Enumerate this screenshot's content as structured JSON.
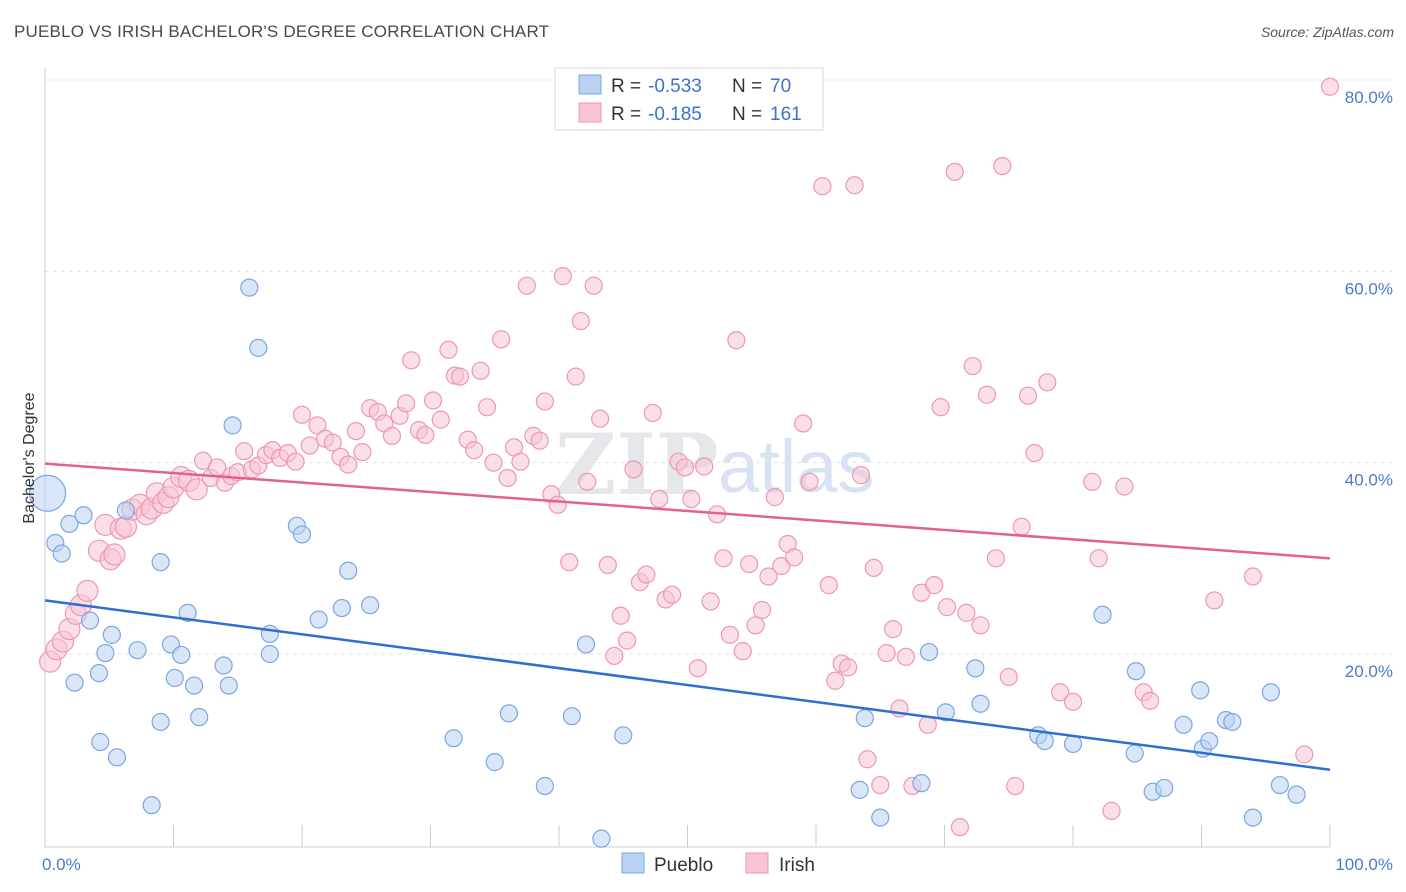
{
  "title": "PUEBLO VS IRISH BACHELOR'S DEGREE CORRELATION CHART",
  "source": "Source: ZipAtlas.com",
  "watermark": {
    "zip": "ZIP",
    "atlas": "atlas"
  },
  "colors": {
    "pueblo_fill": "#b9d2f3",
    "pueblo_stroke": "#7aa7e0",
    "pueblo_line": "#2f6fcf",
    "irish_fill": "#f8c4d4",
    "irish_stroke": "#ee97b3",
    "irish_line": "#e0628d",
    "tick": "#4a7bd0",
    "grid": "#dde2ea"
  },
  "legend_box": {
    "pueblo": {
      "r_label": "R = ",
      "r_value": "-0.533",
      "n_label": "N = ",
      "n_value": "70"
    },
    "irish": {
      "r_label": "R = ",
      "r_value": "-0.185",
      "n_label": "N = ",
      "n_value": "161"
    }
  },
  "chart_data": {
    "type": "scatter",
    "title": "PUEBLO VS IRISH BACHELOR'S DEGREE CORRELATION CHART",
    "xlabel": "",
    "ylabel": "Bachelor's Degree",
    "xlim": [
      0,
      100
    ],
    "ylim": [
      0,
      81
    ],
    "x_tick_labels": [
      {
        "value": 0,
        "label": "0.0%"
      },
      {
        "value": 100,
        "label": "100.0%"
      }
    ],
    "y_tick_labels": [
      {
        "value": 20,
        "label": "20.0%"
      },
      {
        "value": 40,
        "label": "40.0%"
      },
      {
        "value": 60,
        "label": "60.0%"
      },
      {
        "value": 80,
        "label": "80.0%"
      }
    ],
    "legend": [
      "Pueblo",
      "Irish"
    ],
    "series": [
      {
        "name": "Pueblo",
        "r": -0.533,
        "n": 70,
        "trend": {
          "x": [
            0,
            100
          ],
          "y": [
            25.6,
            7.9
          ]
        },
        "points": [
          [
            0.2,
            36.8
          ],
          [
            0.8,
            31.6
          ],
          [
            1.3,
            30.5
          ],
          [
            1.9,
            33.6
          ],
          [
            2.3,
            17.0
          ],
          [
            3.0,
            34.5
          ],
          [
            3.5,
            23.5
          ],
          [
            4.3,
            10.8
          ],
          [
            4.2,
            18.0
          ],
          [
            4.7,
            20.1
          ],
          [
            5.2,
            22.0
          ],
          [
            5.6,
            9.2
          ],
          [
            6.3,
            35.0
          ],
          [
            7.2,
            20.4
          ],
          [
            8.3,
            4.2
          ],
          [
            9.0,
            12.9
          ],
          [
            9.0,
            29.6
          ],
          [
            9.8,
            21.0
          ],
          [
            10.1,
            17.5
          ],
          [
            10.6,
            19.9
          ],
          [
            11.1,
            24.3
          ],
          [
            11.6,
            16.7
          ],
          [
            12.0,
            13.4
          ],
          [
            13.9,
            18.8
          ],
          [
            14.3,
            16.7
          ],
          [
            14.6,
            43.9
          ],
          [
            15.9,
            58.3
          ],
          [
            16.6,
            52.0
          ],
          [
            17.5,
            22.1
          ],
          [
            17.5,
            20.0
          ],
          [
            19.6,
            33.4
          ],
          [
            20.0,
            32.5
          ],
          [
            21.3,
            23.6
          ],
          [
            23.1,
            24.8
          ],
          [
            23.6,
            28.7
          ],
          [
            25.3,
            25.1
          ],
          [
            31.8,
            11.2
          ],
          [
            35.0,
            8.7
          ],
          [
            36.1,
            13.8
          ],
          [
            38.9,
            6.2
          ],
          [
            41.0,
            13.5
          ],
          [
            42.1,
            21.0
          ],
          [
            43.3,
            0.7
          ],
          [
            45.0,
            11.5
          ],
          [
            63.8,
            13.3
          ],
          [
            63.4,
            5.8
          ],
          [
            65.0,
            2.9
          ],
          [
            68.2,
            6.5
          ],
          [
            68.8,
            20.2
          ],
          [
            70.1,
            13.9
          ],
          [
            72.4,
            18.5
          ],
          [
            72.8,
            14.8
          ],
          [
            77.3,
            11.5
          ],
          [
            77.8,
            10.9
          ],
          [
            80.0,
            10.6
          ],
          [
            82.3,
            24.1
          ],
          [
            84.8,
            9.6
          ],
          [
            84.9,
            18.2
          ],
          [
            86.2,
            5.6
          ],
          [
            87.1,
            6.0
          ],
          [
            88.6,
            12.6
          ],
          [
            89.9,
            16.2
          ],
          [
            90.1,
            10.1
          ],
          [
            90.6,
            10.9
          ],
          [
            91.9,
            13.1
          ],
          [
            92.4,
            12.9
          ],
          [
            94.0,
            2.9
          ],
          [
            95.4,
            16.0
          ],
          [
            96.1,
            6.3
          ],
          [
            97.4,
            5.3
          ]
        ]
      },
      {
        "name": "Irish",
        "r": -0.185,
        "n": 161,
        "trend": {
          "x": [
            0,
            100
          ],
          "y": [
            39.9,
            30.0
          ]
        },
        "points": [
          [
            0.4,
            19.2
          ],
          [
            0.9,
            20.5
          ],
          [
            1.4,
            21.3
          ],
          [
            1.9,
            22.6
          ],
          [
            2.4,
            24.2
          ],
          [
            2.8,
            25.1
          ],
          [
            3.3,
            26.6
          ],
          [
            4.2,
            30.8
          ],
          [
            4.7,
            33.5
          ],
          [
            5.1,
            29.9
          ],
          [
            5.4,
            30.4
          ],
          [
            5.9,
            33.1
          ],
          [
            6.3,
            33.3
          ],
          [
            6.8,
            35.1
          ],
          [
            7.4,
            35.6
          ],
          [
            7.9,
            34.6
          ],
          [
            8.3,
            35.2
          ],
          [
            8.7,
            36.8
          ],
          [
            9.2,
            35.8
          ],
          [
            9.6,
            36.4
          ],
          [
            10.0,
            37.4
          ],
          [
            10.6,
            38.5
          ],
          [
            11.2,
            38.1
          ],
          [
            11.8,
            37.2
          ],
          [
            12.3,
            40.2
          ],
          [
            12.9,
            38.4
          ],
          [
            13.4,
            39.5
          ],
          [
            14.0,
            37.9
          ],
          [
            14.5,
            38.6
          ],
          [
            15.0,
            39.0
          ],
          [
            15.5,
            41.2
          ],
          [
            16.1,
            39.3
          ],
          [
            16.6,
            39.7
          ],
          [
            17.2,
            40.8
          ],
          [
            17.7,
            41.3
          ],
          [
            18.3,
            40.5
          ],
          [
            18.9,
            41.0
          ],
          [
            19.5,
            40.1
          ],
          [
            20.0,
            45.0
          ],
          [
            20.6,
            41.8
          ],
          [
            21.2,
            43.9
          ],
          [
            21.8,
            42.5
          ],
          [
            22.4,
            42.1
          ],
          [
            23.0,
            40.6
          ],
          [
            23.6,
            39.8
          ],
          [
            24.2,
            43.3
          ],
          [
            24.7,
            41.1
          ],
          [
            25.3,
            45.7
          ],
          [
            25.9,
            45.3
          ],
          [
            26.4,
            44.1
          ],
          [
            27.0,
            42.8
          ],
          [
            27.6,
            44.9
          ],
          [
            28.1,
            46.2
          ],
          [
            28.5,
            50.7
          ],
          [
            29.1,
            43.4
          ],
          [
            29.6,
            42.9
          ],
          [
            30.2,
            46.5
          ],
          [
            30.8,
            44.5
          ],
          [
            31.4,
            51.8
          ],
          [
            31.9,
            49.1
          ],
          [
            32.3,
            49.0
          ],
          [
            32.9,
            42.4
          ],
          [
            33.4,
            41.3
          ],
          [
            33.9,
            49.6
          ],
          [
            34.4,
            45.8
          ],
          [
            34.9,
            40.0
          ],
          [
            35.5,
            52.9
          ],
          [
            36.0,
            38.4
          ],
          [
            36.5,
            41.6
          ],
          [
            37.0,
            40.1
          ],
          [
            37.5,
            58.5
          ],
          [
            38.0,
            42.8
          ],
          [
            38.5,
            42.3
          ],
          [
            38.9,
            46.4
          ],
          [
            39.4,
            36.7
          ],
          [
            39.9,
            35.6
          ],
          [
            40.3,
            59.5
          ],
          [
            40.8,
            29.6
          ],
          [
            41.3,
            49.0
          ],
          [
            41.7,
            54.8
          ],
          [
            42.2,
            38.0
          ],
          [
            42.7,
            58.5
          ],
          [
            43.2,
            44.6
          ],
          [
            43.8,
            29.3
          ],
          [
            44.3,
            19.8
          ],
          [
            44.8,
            24.0
          ],
          [
            45.3,
            21.4
          ],
          [
            45.8,
            39.3
          ],
          [
            46.3,
            27.5
          ],
          [
            46.8,
            28.3
          ],
          [
            47.3,
            45.2
          ],
          [
            47.8,
            36.2
          ],
          [
            48.3,
            25.7
          ],
          [
            48.8,
            26.2
          ],
          [
            49.3,
            40.1
          ],
          [
            49.8,
            39.5
          ],
          [
            50.3,
            36.2
          ],
          [
            50.8,
            18.5
          ],
          [
            51.3,
            39.6
          ],
          [
            51.8,
            25.5
          ],
          [
            52.3,
            34.6
          ],
          [
            52.8,
            30.0
          ],
          [
            53.3,
            22.0
          ],
          [
            53.8,
            52.8
          ],
          [
            54.3,
            20.3
          ],
          [
            54.8,
            29.4
          ],
          [
            55.3,
            23.0
          ],
          [
            55.8,
            24.6
          ],
          [
            56.3,
            28.1
          ],
          [
            56.8,
            36.4
          ],
          [
            57.3,
            29.2
          ],
          [
            57.8,
            31.5
          ],
          [
            58.3,
            30.1
          ],
          [
            59.0,
            44.1
          ],
          [
            59.5,
            38.0
          ],
          [
            60.5,
            68.9
          ],
          [
            61.0,
            27.2
          ],
          [
            61.5,
            17.2
          ],
          [
            62.0,
            19.0
          ],
          [
            62.5,
            18.6
          ],
          [
            63.0,
            69.0
          ],
          [
            63.5,
            38.7
          ],
          [
            64.0,
            9.0
          ],
          [
            64.5,
            29.0
          ],
          [
            65.0,
            6.3
          ],
          [
            65.5,
            20.1
          ],
          [
            66.0,
            22.6
          ],
          [
            66.5,
            14.3
          ],
          [
            67.0,
            19.7
          ],
          [
            67.5,
            6.2
          ],
          [
            68.2,
            26.4
          ],
          [
            68.7,
            12.6
          ],
          [
            69.2,
            27.2
          ],
          [
            69.7,
            45.8
          ],
          [
            70.2,
            24.9
          ],
          [
            70.8,
            70.4
          ],
          [
            71.2,
            1.9
          ],
          [
            71.7,
            24.3
          ],
          [
            72.2,
            50.1
          ],
          [
            72.8,
            23.0
          ],
          [
            73.3,
            47.1
          ],
          [
            74.0,
            30.0
          ],
          [
            74.5,
            71.0
          ],
          [
            75.0,
            17.6
          ],
          [
            75.5,
            6.2
          ],
          [
            76.0,
            33.3
          ],
          [
            76.5,
            47.0
          ],
          [
            77.0,
            41.0
          ],
          [
            78.0,
            48.4
          ],
          [
            79.0,
            16.0
          ],
          [
            80.0,
            15.0
          ],
          [
            81.5,
            38.0
          ],
          [
            82.0,
            30.0
          ],
          [
            83.0,
            3.6
          ],
          [
            84.0,
            37.5
          ],
          [
            85.5,
            16.0
          ],
          [
            86.0,
            15.1
          ],
          [
            94.0,
            28.1
          ],
          [
            98.0,
            9.5
          ],
          [
            100.0,
            79.3
          ],
          [
            91.0,
            25.6
          ]
        ]
      }
    ]
  },
  "series_legend": [
    {
      "name": "Pueblo"
    },
    {
      "name": "Irish"
    }
  ]
}
